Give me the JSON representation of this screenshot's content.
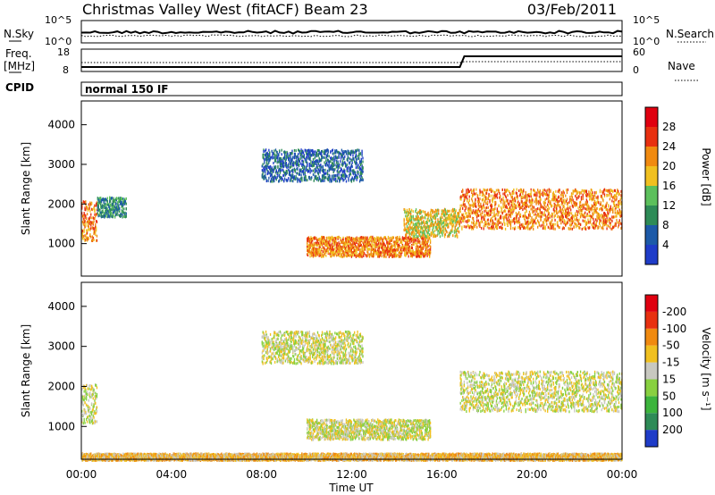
{
  "header": {
    "title": "Christmas Valley West (fitACF)",
    "beam": "Beam 23",
    "date": "03/Feb/2011"
  },
  "top_panels": {
    "nsky_label": "N.Sky",
    "nsearch_label": "N.Search",
    "nsky_ticks": [
      "10^5",
      "10^0"
    ],
    "nsearch_ticks": [
      "10^5",
      "10^0"
    ],
    "freq_label_1": "Freq.",
    "freq_label_2": "[MHz]",
    "freq_ticks": [
      "18",
      "8"
    ],
    "nave_label": "Nave",
    "nave_ticks": [
      "60",
      "0"
    ],
    "cpid_label": "CPID",
    "cpid_value": "normal 150 IF"
  },
  "chart_data": [
    {
      "type": "heatmap",
      "name": "power",
      "ylabel": "Slant Range [km]",
      "xlabel": "Time UT",
      "x_ticks": [
        "00:00",
        "04:00",
        "08:00",
        "12:00",
        "16:00",
        "20:00",
        "00:00"
      ],
      "y_ticks": [
        1000,
        2000,
        3000,
        4000
      ],
      "ylim": [
        180,
        4600
      ],
      "xlim_hours": [
        0,
        24
      ],
      "colorbar_label": "Power [dB]",
      "colorbar_ticks": [
        4,
        8,
        12,
        16,
        20,
        24,
        28
      ],
      "colorbar_colors": [
        "#1f3cc8",
        "#1d5aa8",
        "#2e8b57",
        "#5cc05c",
        "#f0c020",
        "#f08a10",
        "#e83010",
        "#e00010"
      ],
      "regions": [
        {
          "t0": 0.0,
          "t1": 0.7,
          "r0": 1100,
          "r1": 2100,
          "level": 5
        },
        {
          "t0": 0.7,
          "t1": 2.0,
          "r0": 1700,
          "r1": 2200,
          "level": 2
        },
        {
          "t0": 8.0,
          "t1": 12.5,
          "r0": 2600,
          "r1": 3400,
          "level": 1
        },
        {
          "t0": 10.0,
          "t1": 15.5,
          "r0": 700,
          "r1": 1200,
          "level": 5
        },
        {
          "t0": 14.3,
          "t1": 16.8,
          "r0": 1200,
          "r1": 1900,
          "level": 4
        },
        {
          "t0": 16.8,
          "t1": 24.0,
          "r0": 1400,
          "r1": 2400,
          "level": 5
        }
      ]
    },
    {
      "type": "heatmap",
      "name": "velocity",
      "ylabel": "Slant Range [km]",
      "xlabel": "Time UT",
      "x_ticks": [
        "00:00",
        "04:00",
        "08:00",
        "12:00",
        "16:00",
        "20:00",
        "00:00"
      ],
      "y_ticks": [
        1000,
        2000,
        3000,
        4000
      ],
      "ylim": [
        180,
        4600
      ],
      "xlim_hours": [
        0,
        24
      ],
      "colorbar_label": "Velocity [m s⁻¹]",
      "colorbar_ticks": [
        200,
        100,
        50,
        15,
        -15,
        -50,
        -100,
        -200
      ],
      "colorbar_colors": [
        "#1f3cc8",
        "#2e8b57",
        "#3cb43c",
        "#88d040",
        "#c8c8c0",
        "#f0c020",
        "#f08a10",
        "#e83010",
        "#e00010"
      ],
      "regions": [
        {
          "t0": 0.0,
          "t1": 0.7,
          "r0": 1100,
          "r1": 2100,
          "level": 4
        },
        {
          "t0": 8.0,
          "t1": 12.5,
          "r0": 2600,
          "r1": 3400,
          "level": 4
        },
        {
          "t0": 10.0,
          "t1": 15.5,
          "r0": 700,
          "r1": 1200,
          "level": 4
        },
        {
          "t0": 16.8,
          "t1": 24.0,
          "r0": 1400,
          "r1": 2400,
          "level": 4
        },
        {
          "t0": 0.0,
          "t1": 24.0,
          "r0": 180,
          "r1": 350,
          "level": 5
        }
      ]
    }
  ]
}
